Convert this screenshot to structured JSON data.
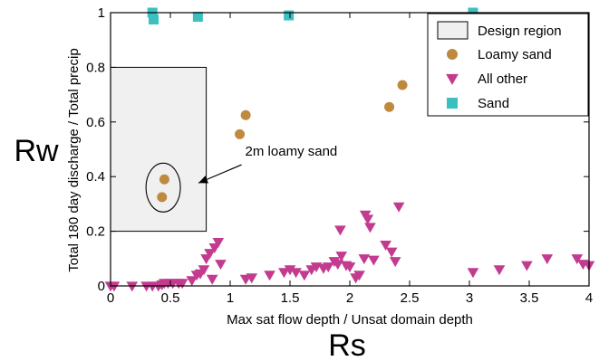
{
  "chart_data": {
    "type": "scatter",
    "xlabel": "Max sat flow depth / Unsat domain depth",
    "ylabel": "Total 180 day discharge / Total precip",
    "big_xlabel": "Rs",
    "big_ylabel": "Rw",
    "xlim": [
      0,
      4
    ],
    "ylim": [
      0,
      1
    ],
    "x_ticks": [
      "0",
      "0.5",
      "1",
      "1.5",
      "2",
      "2.5",
      "3",
      "3.5",
      "4"
    ],
    "y_ticks": [
      "0",
      "0.2",
      "0.4",
      "0.6",
      "0.8",
      "1"
    ],
    "grid": false,
    "legend_position": "top-right",
    "design_region": {
      "label": "Design region",
      "x": [
        0,
        0.8
      ],
      "y": [
        0.2,
        0.8
      ],
      "color": "#f0f0f0"
    },
    "annotation": {
      "text": "2m loamy sand",
      "target_x": 0.72,
      "target_y": 0.38,
      "text_x": 1.08,
      "text_y": 0.45
    },
    "series": [
      {
        "name": "Loamy sand",
        "marker": "circle",
        "color": "#bf8a3e",
        "points": [
          [
            0.45,
            0.39
          ],
          [
            0.43,
            0.325
          ],
          [
            1.08,
            0.555
          ],
          [
            1.13,
            0.625
          ],
          [
            2.33,
            0.655
          ],
          [
            2.44,
            0.735
          ]
        ]
      },
      {
        "name": "All other",
        "marker": "triangle-down",
        "color": "#c33b8f",
        "points": [
          [
            0.0,
            0.0
          ],
          [
            0.03,
            0.0
          ],
          [
            0.18,
            0.0
          ],
          [
            0.3,
            0.0
          ],
          [
            0.35,
            0.0
          ],
          [
            0.4,
            0.0
          ],
          [
            0.43,
            0.005
          ],
          [
            0.45,
            0.01
          ],
          [
            0.48,
            0.01
          ],
          [
            0.52,
            0.01
          ],
          [
            0.57,
            0.01
          ],
          [
            0.6,
            0.01
          ],
          [
            0.68,
            0.02
          ],
          [
            0.72,
            0.04
          ],
          [
            0.75,
            0.045
          ],
          [
            0.78,
            0.06
          ],
          [
            0.8,
            0.1
          ],
          [
            0.83,
            0.12
          ],
          [
            0.85,
            0.025
          ],
          [
            0.87,
            0.14
          ],
          [
            0.9,
            0.16
          ],
          [
            0.92,
            0.08
          ],
          [
            1.13,
            0.025
          ],
          [
            1.18,
            0.03
          ],
          [
            1.33,
            0.04
          ],
          [
            1.45,
            0.05
          ],
          [
            1.5,
            0.06
          ],
          [
            1.55,
            0.05
          ],
          [
            1.62,
            0.04
          ],
          [
            1.68,
            0.06
          ],
          [
            1.72,
            0.07
          ],
          [
            1.78,
            0.065
          ],
          [
            1.82,
            0.07
          ],
          [
            1.87,
            0.09
          ],
          [
            1.9,
            0.08
          ],
          [
            1.93,
            0.11
          ],
          [
            1.97,
            0.075
          ],
          [
            1.92,
            0.205
          ],
          [
            2.0,
            0.07
          ],
          [
            2.05,
            0.03
          ],
          [
            2.08,
            0.04
          ],
          [
            2.12,
            0.1
          ],
          [
            2.13,
            0.26
          ],
          [
            2.15,
            0.245
          ],
          [
            2.17,
            0.215
          ],
          [
            2.2,
            0.095
          ],
          [
            2.3,
            0.15
          ],
          [
            2.35,
            0.125
          ],
          [
            2.38,
            0.09
          ],
          [
            2.41,
            0.29
          ],
          [
            3.03,
            0.05
          ],
          [
            3.25,
            0.06
          ],
          [
            3.48,
            0.075
          ],
          [
            3.65,
            0.1
          ],
          [
            3.9,
            0.1
          ],
          [
            3.95,
            0.08
          ],
          [
            4.0,
            0.075
          ]
        ]
      },
      {
        "name": "Sand",
        "marker": "square",
        "color": "#3bbfbf",
        "points": [
          [
            0.35,
            1.0
          ],
          [
            0.36,
            0.975
          ],
          [
            0.73,
            0.985
          ],
          [
            1.49,
            0.99
          ],
          [
            3.03,
            1.0
          ]
        ]
      }
    ]
  }
}
